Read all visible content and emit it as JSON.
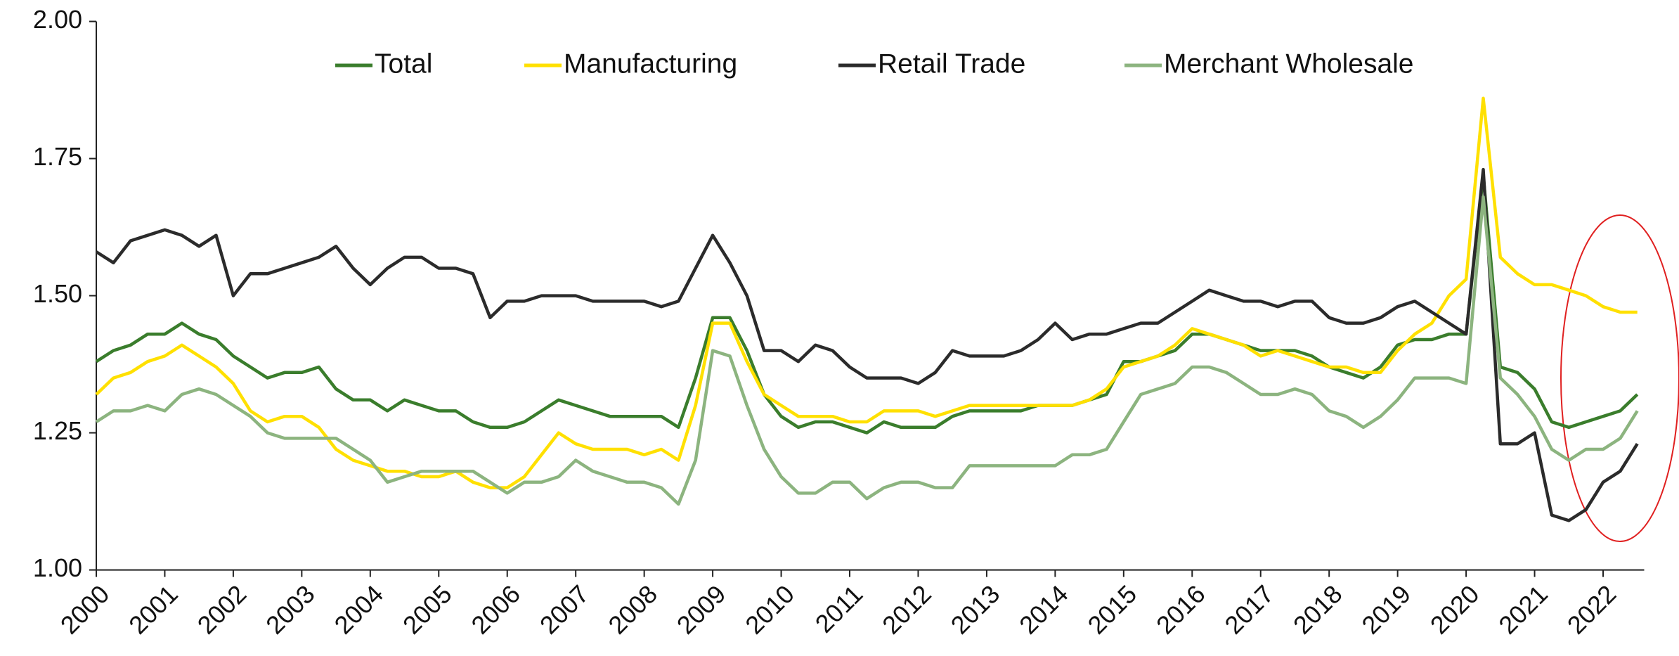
{
  "chart_data": {
    "type": "line",
    "x": [
      2000,
      2000.25,
      2000.5,
      2000.75,
      2001,
      2001.25,
      2001.5,
      2001.75,
      2002,
      2002.25,
      2002.5,
      2002.75,
      2003,
      2003.25,
      2003.5,
      2003.75,
      2004,
      2004.25,
      2004.5,
      2004.75,
      2005,
      2005.25,
      2005.5,
      2005.75,
      2006,
      2006.25,
      2006.5,
      2006.75,
      2007,
      2007.25,
      2007.5,
      2007.75,
      2008,
      2008.25,
      2008.5,
      2008.75,
      2009,
      2009.25,
      2009.5,
      2009.75,
      2010,
      2010.25,
      2010.5,
      2010.75,
      2011,
      2011.25,
      2011.5,
      2011.75,
      2012,
      2012.25,
      2012.5,
      2012.75,
      2013,
      2013.25,
      2013.5,
      2013.75,
      2014,
      2014.25,
      2014.5,
      2014.75,
      2015,
      2015.25,
      2015.5,
      2015.75,
      2016,
      2016.25,
      2016.5,
      2016.75,
      2017,
      2017.25,
      2017.5,
      2017.75,
      2018,
      2018.25,
      2018.5,
      2018.75,
      2019,
      2019.25,
      2019.5,
      2019.75,
      2020,
      2020.25,
      2020.5,
      2020.75,
      2021,
      2021.25,
      2021.5,
      2021.75,
      2022,
      2022.25,
      2022.5
    ],
    "series": [
      {
        "name": "Total",
        "color": "#3a7d2c",
        "values": [
          1.38,
          1.4,
          1.41,
          1.43,
          1.43,
          1.45,
          1.43,
          1.42,
          1.39,
          1.37,
          1.35,
          1.36,
          1.36,
          1.37,
          1.33,
          1.31,
          1.31,
          1.29,
          1.31,
          1.3,
          1.29,
          1.29,
          1.27,
          1.26,
          1.26,
          1.27,
          1.29,
          1.31,
          1.3,
          1.29,
          1.28,
          1.28,
          1.28,
          1.28,
          1.26,
          1.35,
          1.46,
          1.46,
          1.4,
          1.32,
          1.28,
          1.26,
          1.27,
          1.27,
          1.26,
          1.25,
          1.27,
          1.26,
          1.26,
          1.26,
          1.28,
          1.29,
          1.29,
          1.29,
          1.29,
          1.3,
          1.3,
          1.3,
          1.31,
          1.32,
          1.38,
          1.38,
          1.39,
          1.4,
          1.43,
          1.43,
          1.42,
          1.41,
          1.4,
          1.4,
          1.4,
          1.39,
          1.37,
          1.36,
          1.35,
          1.37,
          1.41,
          1.42,
          1.42,
          1.43,
          1.43,
          1.72,
          1.37,
          1.36,
          1.33,
          1.27,
          1.26,
          1.27,
          1.28,
          1.29,
          1.32
        ]
      },
      {
        "name": "Manufacturing",
        "color": "#ffe000",
        "values": [
          1.32,
          1.35,
          1.36,
          1.38,
          1.39,
          1.41,
          1.39,
          1.37,
          1.34,
          1.29,
          1.27,
          1.28,
          1.28,
          1.26,
          1.22,
          1.2,
          1.19,
          1.18,
          1.18,
          1.17,
          1.17,
          1.18,
          1.16,
          1.15,
          1.15,
          1.17,
          1.21,
          1.25,
          1.23,
          1.22,
          1.22,
          1.22,
          1.21,
          1.22,
          1.2,
          1.3,
          1.45,
          1.45,
          1.38,
          1.32,
          1.3,
          1.28,
          1.28,
          1.28,
          1.27,
          1.27,
          1.29,
          1.29,
          1.29,
          1.28,
          1.29,
          1.3,
          1.3,
          1.3,
          1.3,
          1.3,
          1.3,
          1.3,
          1.31,
          1.33,
          1.37,
          1.38,
          1.39,
          1.41,
          1.44,
          1.43,
          1.42,
          1.41,
          1.39,
          1.4,
          1.39,
          1.38,
          1.37,
          1.37,
          1.36,
          1.36,
          1.4,
          1.43,
          1.45,
          1.5,
          1.53,
          1.86,
          1.57,
          1.54,
          1.52,
          1.52,
          1.51,
          1.5,
          1.48,
          1.47,
          1.47
        ]
      },
      {
        "name": "Retail Trade",
        "color": "#2b2b2b",
        "values": [
          1.58,
          1.56,
          1.6,
          1.61,
          1.62,
          1.61,
          1.59,
          1.61,
          1.5,
          1.54,
          1.54,
          1.55,
          1.56,
          1.57,
          1.59,
          1.55,
          1.52,
          1.55,
          1.57,
          1.57,
          1.55,
          1.55,
          1.54,
          1.46,
          1.49,
          1.49,
          1.5,
          1.5,
          1.5,
          1.49,
          1.49,
          1.49,
          1.49,
          1.48,
          1.49,
          1.55,
          1.61,
          1.56,
          1.5,
          1.4,
          1.4,
          1.38,
          1.41,
          1.4,
          1.37,
          1.35,
          1.35,
          1.35,
          1.34,
          1.36,
          1.4,
          1.39,
          1.39,
          1.39,
          1.4,
          1.42,
          1.45,
          1.42,
          1.43,
          1.43,
          1.44,
          1.45,
          1.45,
          1.47,
          1.49,
          1.51,
          1.5,
          1.49,
          1.49,
          1.48,
          1.49,
          1.49,
          1.46,
          1.45,
          1.45,
          1.46,
          1.48,
          1.49,
          1.47,
          1.45,
          1.43,
          1.73,
          1.23,
          1.23,
          1.25,
          1.1,
          1.09,
          1.11,
          1.16,
          1.18,
          1.23
        ]
      },
      {
        "name": "Merchant Wholesale",
        "color": "#8cb47f",
        "values": [
          1.27,
          1.29,
          1.29,
          1.3,
          1.29,
          1.32,
          1.33,
          1.32,
          1.3,
          1.28,
          1.25,
          1.24,
          1.24,
          1.24,
          1.24,
          1.22,
          1.2,
          1.16,
          1.17,
          1.18,
          1.18,
          1.18,
          1.18,
          1.16,
          1.14,
          1.16,
          1.16,
          1.17,
          1.2,
          1.18,
          1.17,
          1.16,
          1.16,
          1.15,
          1.12,
          1.2,
          1.4,
          1.39,
          1.3,
          1.22,
          1.17,
          1.14,
          1.14,
          1.16,
          1.16,
          1.13,
          1.15,
          1.16,
          1.16,
          1.15,
          1.15,
          1.19,
          1.19,
          1.19,
          1.19,
          1.19,
          1.19,
          1.21,
          1.21,
          1.22,
          1.27,
          1.32,
          1.33,
          1.34,
          1.37,
          1.37,
          1.36,
          1.34,
          1.32,
          1.32,
          1.33,
          1.32,
          1.29,
          1.28,
          1.26,
          1.28,
          1.31,
          1.35,
          1.35,
          1.35,
          1.34,
          1.68,
          1.35,
          1.32,
          1.28,
          1.22,
          1.2,
          1.22,
          1.22,
          1.24,
          1.29
        ]
      }
    ],
    "xlim": [
      2000,
      2022.6
    ],
    "xticks": [
      2000,
      2001,
      2002,
      2003,
      2004,
      2005,
      2006,
      2007,
      2008,
      2009,
      2010,
      2011,
      2012,
      2013,
      2014,
      2015,
      2016,
      2017,
      2018,
      2019,
      2020,
      2021,
      2022
    ],
    "ylim": [
      1,
      2
    ],
    "yticks": [
      {
        "value": 1,
        "label": "1.00"
      },
      {
        "value": 1.25,
        "label": "1.25"
      },
      {
        "value": 1.5,
        "label": "1.50"
      },
      {
        "value": 1.75,
        "label": "1.75"
      },
      {
        "value": 2,
        "label": "2.00"
      }
    ],
    "grid": false,
    "legend": "top"
  }
}
